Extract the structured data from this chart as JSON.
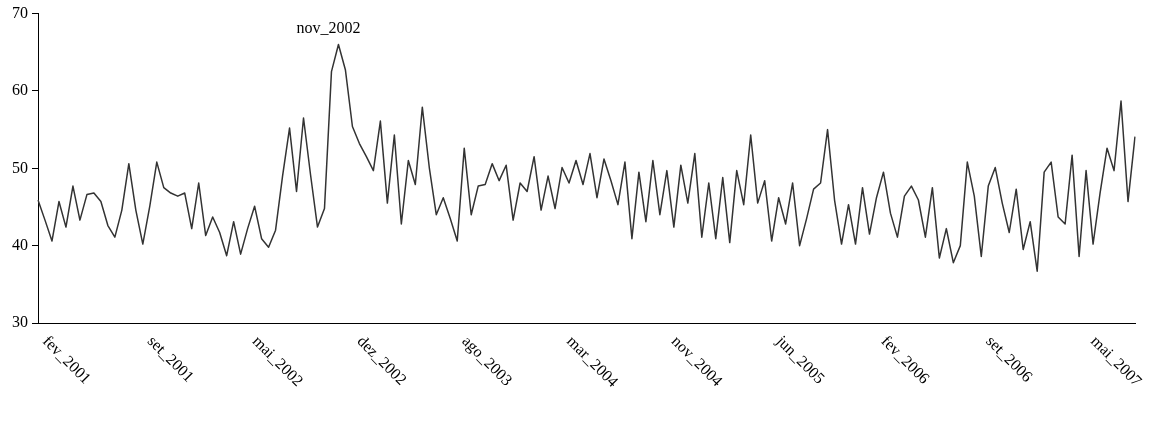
{
  "chart_data": {
    "type": "line",
    "categories": [
      null,
      "fev_2001",
      null,
      null,
      null,
      null,
      null,
      null,
      null,
      null,
      null,
      null,
      null,
      null,
      null,
      null,
      "set_2001",
      null,
      null,
      null,
      null,
      null,
      null,
      null,
      null,
      null,
      null,
      null,
      null,
      null,
      null,
      "mai_2002",
      null,
      null,
      null,
      null,
      null,
      null,
      null,
      null,
      null,
      null,
      null,
      null,
      null,
      null,
      "dez_2002",
      null,
      null,
      null,
      null,
      null,
      null,
      null,
      null,
      null,
      null,
      null,
      null,
      null,
      null,
      "ago_2003",
      null,
      null,
      null,
      null,
      null,
      null,
      null,
      null,
      null,
      null,
      null,
      null,
      null,
      null,
      "mar_2004",
      null,
      null,
      null,
      null,
      null,
      null,
      null,
      null,
      null,
      null,
      null,
      null,
      null,
      null,
      "nov_2004",
      null,
      null,
      null,
      null,
      null,
      null,
      null,
      null,
      null,
      null,
      null,
      null,
      null,
      null,
      "jun_2005",
      null,
      null,
      null,
      null,
      null,
      null,
      null,
      null,
      null,
      null,
      null,
      null,
      null,
      null,
      "fev_2006",
      null,
      null,
      null,
      null,
      null,
      null,
      null,
      null,
      null,
      null,
      null,
      null,
      null,
      null,
      "set_2006",
      null,
      null,
      null,
      null,
      null,
      null,
      null,
      null,
      null,
      null,
      null,
      null,
      null,
      null,
      "mai_2007",
      null,
      null,
      null,
      null,
      null,
      null
    ],
    "values": [
      45.9,
      43.3,
      40.6,
      45.7,
      42.4,
      47.7,
      43.3,
      46.6,
      46.8,
      45.7,
      42.6,
      41.1,
      44.6,
      50.6,
      44.6,
      40.2,
      45.1,
      50.8,
      47.5,
      46.8,
      46.4,
      46.8,
      42.2,
      48.1,
      41.3,
      43.7,
      41.7,
      38.7,
      43.1,
      38.9,
      42.2,
      45.1,
      40.9,
      39.8,
      42.0,
      49.0,
      55.2,
      47.0,
      56.5,
      49.2,
      42.4,
      44.8,
      62.5,
      66.0,
      62.7,
      55.4,
      53.2,
      51.5,
      49.7,
      56.1,
      45.5,
      54.3,
      42.8,
      51.0,
      47.9,
      57.9,
      50.1,
      44.0,
      46.2,
      43.5,
      40.6,
      52.6,
      44.0,
      47.7,
      47.9,
      50.6,
      48.4,
      50.4,
      43.3,
      48.1,
      47.0,
      51.5,
      44.6,
      49.0,
      44.8,
      50.1,
      48.1,
      51.0,
      47.9,
      51.9,
      46.2,
      51.2,
      48.4,
      45.3,
      50.8,
      40.9,
      49.5,
      43.1,
      51.0,
      44.0,
      49.7,
      42.4,
      50.4,
      45.5,
      51.9,
      41.1,
      48.1,
      40.9,
      48.8,
      40.4,
      49.7,
      45.3,
      54.3,
      45.5,
      48.4,
      40.6,
      46.2,
      42.8,
      48.1,
      40.0,
      43.5,
      47.3,
      48.1,
      55.0,
      45.9,
      40.2,
      45.3,
      40.2,
      47.5,
      41.5,
      46.2,
      49.5,
      44.2,
      41.1,
      46.4,
      47.7,
      45.9,
      41.1,
      47.5,
      38.4,
      42.2,
      37.8,
      40.0,
      50.8,
      46.4,
      38.6,
      47.7,
      50.1,
      45.5,
      41.7,
      47.3,
      39.5,
      43.1,
      36.7,
      49.5,
      50.8,
      43.7,
      42.8,
      51.7,
      38.6,
      49.7,
      40.2,
      46.8,
      52.6,
      49.7,
      58.7,
      45.7,
      54.1
    ],
    "color": "#333333",
    "ylim": [
      30,
      70
    ],
    "yticks": [
      30,
      40,
      50,
      60,
      70
    ],
    "annotations": [
      "nov_2002"
    ]
  }
}
